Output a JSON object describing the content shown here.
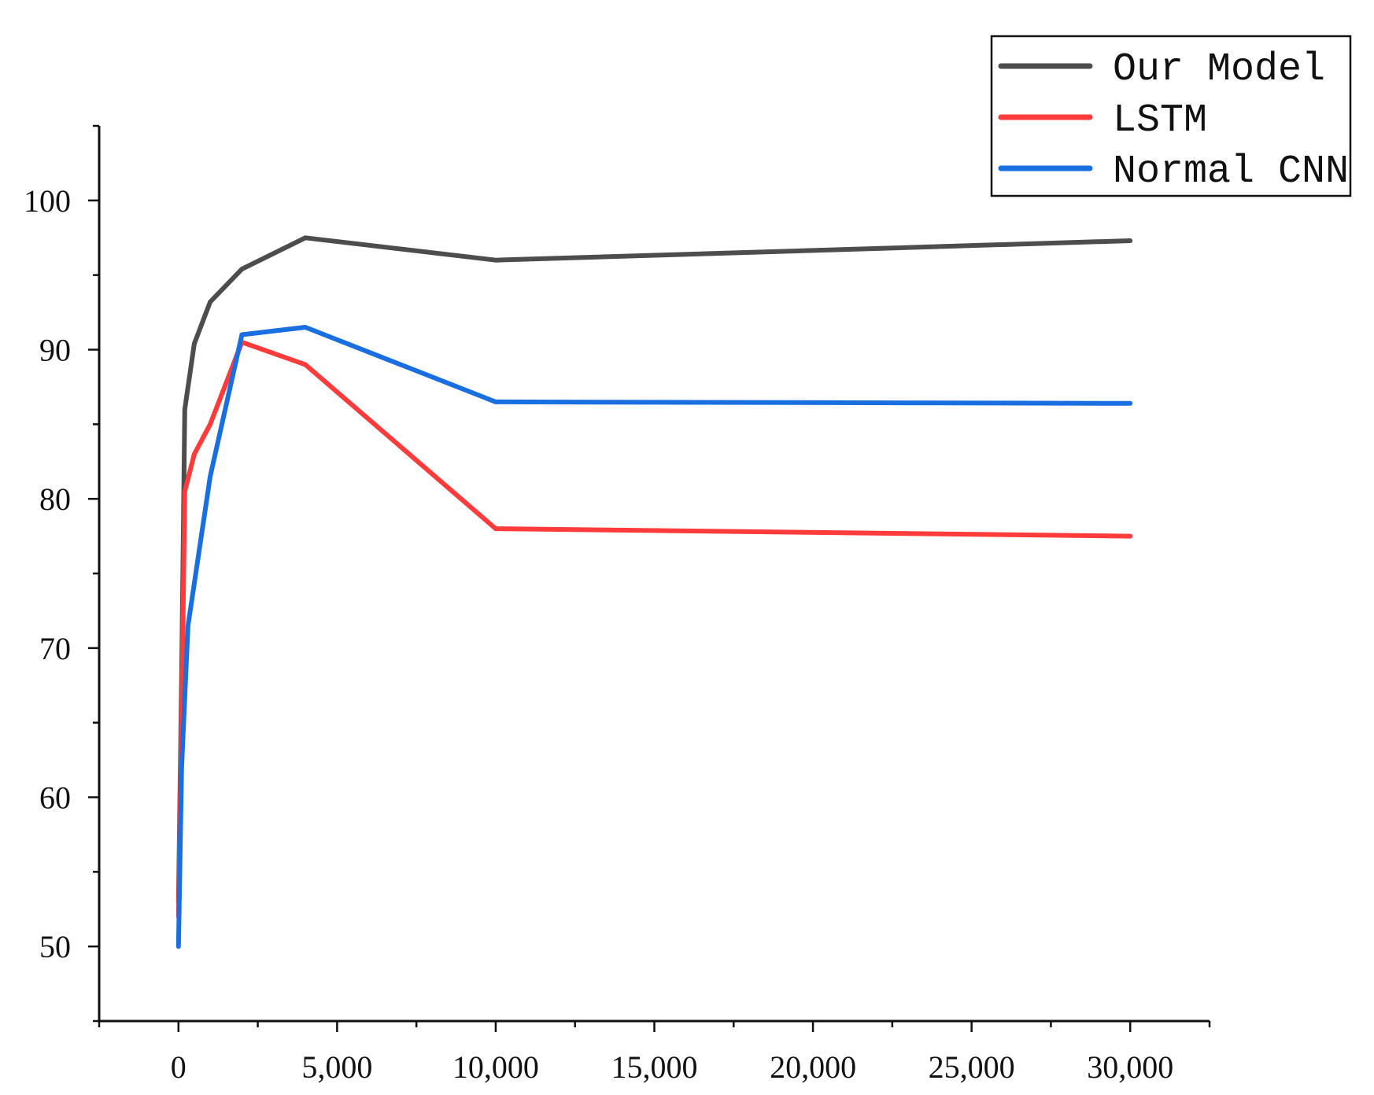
{
  "chart_data": {
    "type": "line",
    "title": "",
    "xlabel": "",
    "ylabel": "",
    "xlim": [
      -2500,
      32500
    ],
    "ylim": [
      45,
      105
    ],
    "x_ticks": [
      0,
      5000,
      10000,
      15000,
      20000,
      25000,
      30000
    ],
    "x_tick_labels": [
      "0",
      "5,000",
      "10,000",
      "15,000",
      "20,000",
      "25,000",
      "30,000"
    ],
    "x_minor_step": 2500,
    "y_ticks": [
      50,
      60,
      70,
      80,
      90,
      100
    ],
    "y_tick_labels": [
      "50",
      "60",
      "70",
      "80",
      "90",
      "100"
    ],
    "y_minor_step": 5,
    "grid": false,
    "legend_position": "top-right",
    "series": [
      {
        "name": "Our Model",
        "color": "#4d4d4d",
        "x": [
          0,
          100,
          200,
          500,
          1000,
          2000,
          4000,
          10000,
          30000
        ],
        "y": [
          53,
          68,
          86,
          90.4,
          93.2,
          95.4,
          97.5,
          96.0,
          97.3
        ]
      },
      {
        "name": "LSTM",
        "color": "#ff3b3b",
        "x": [
          0,
          100,
          200,
          500,
          1000,
          2000,
          4000,
          10000,
          30000
        ],
        "y": [
          52,
          65,
          80.5,
          83,
          85,
          90.5,
          89,
          78,
          77.5
        ]
      },
      {
        "name": "Normal CNN",
        "color": "#1a6fe0",
        "x": [
          0,
          100,
          300,
          1000,
          2000,
          4000,
          10000,
          30000
        ],
        "y": [
          50,
          62,
          71.5,
          81.5,
          91,
          91.5,
          86.5,
          86.4
        ]
      }
    ]
  }
}
